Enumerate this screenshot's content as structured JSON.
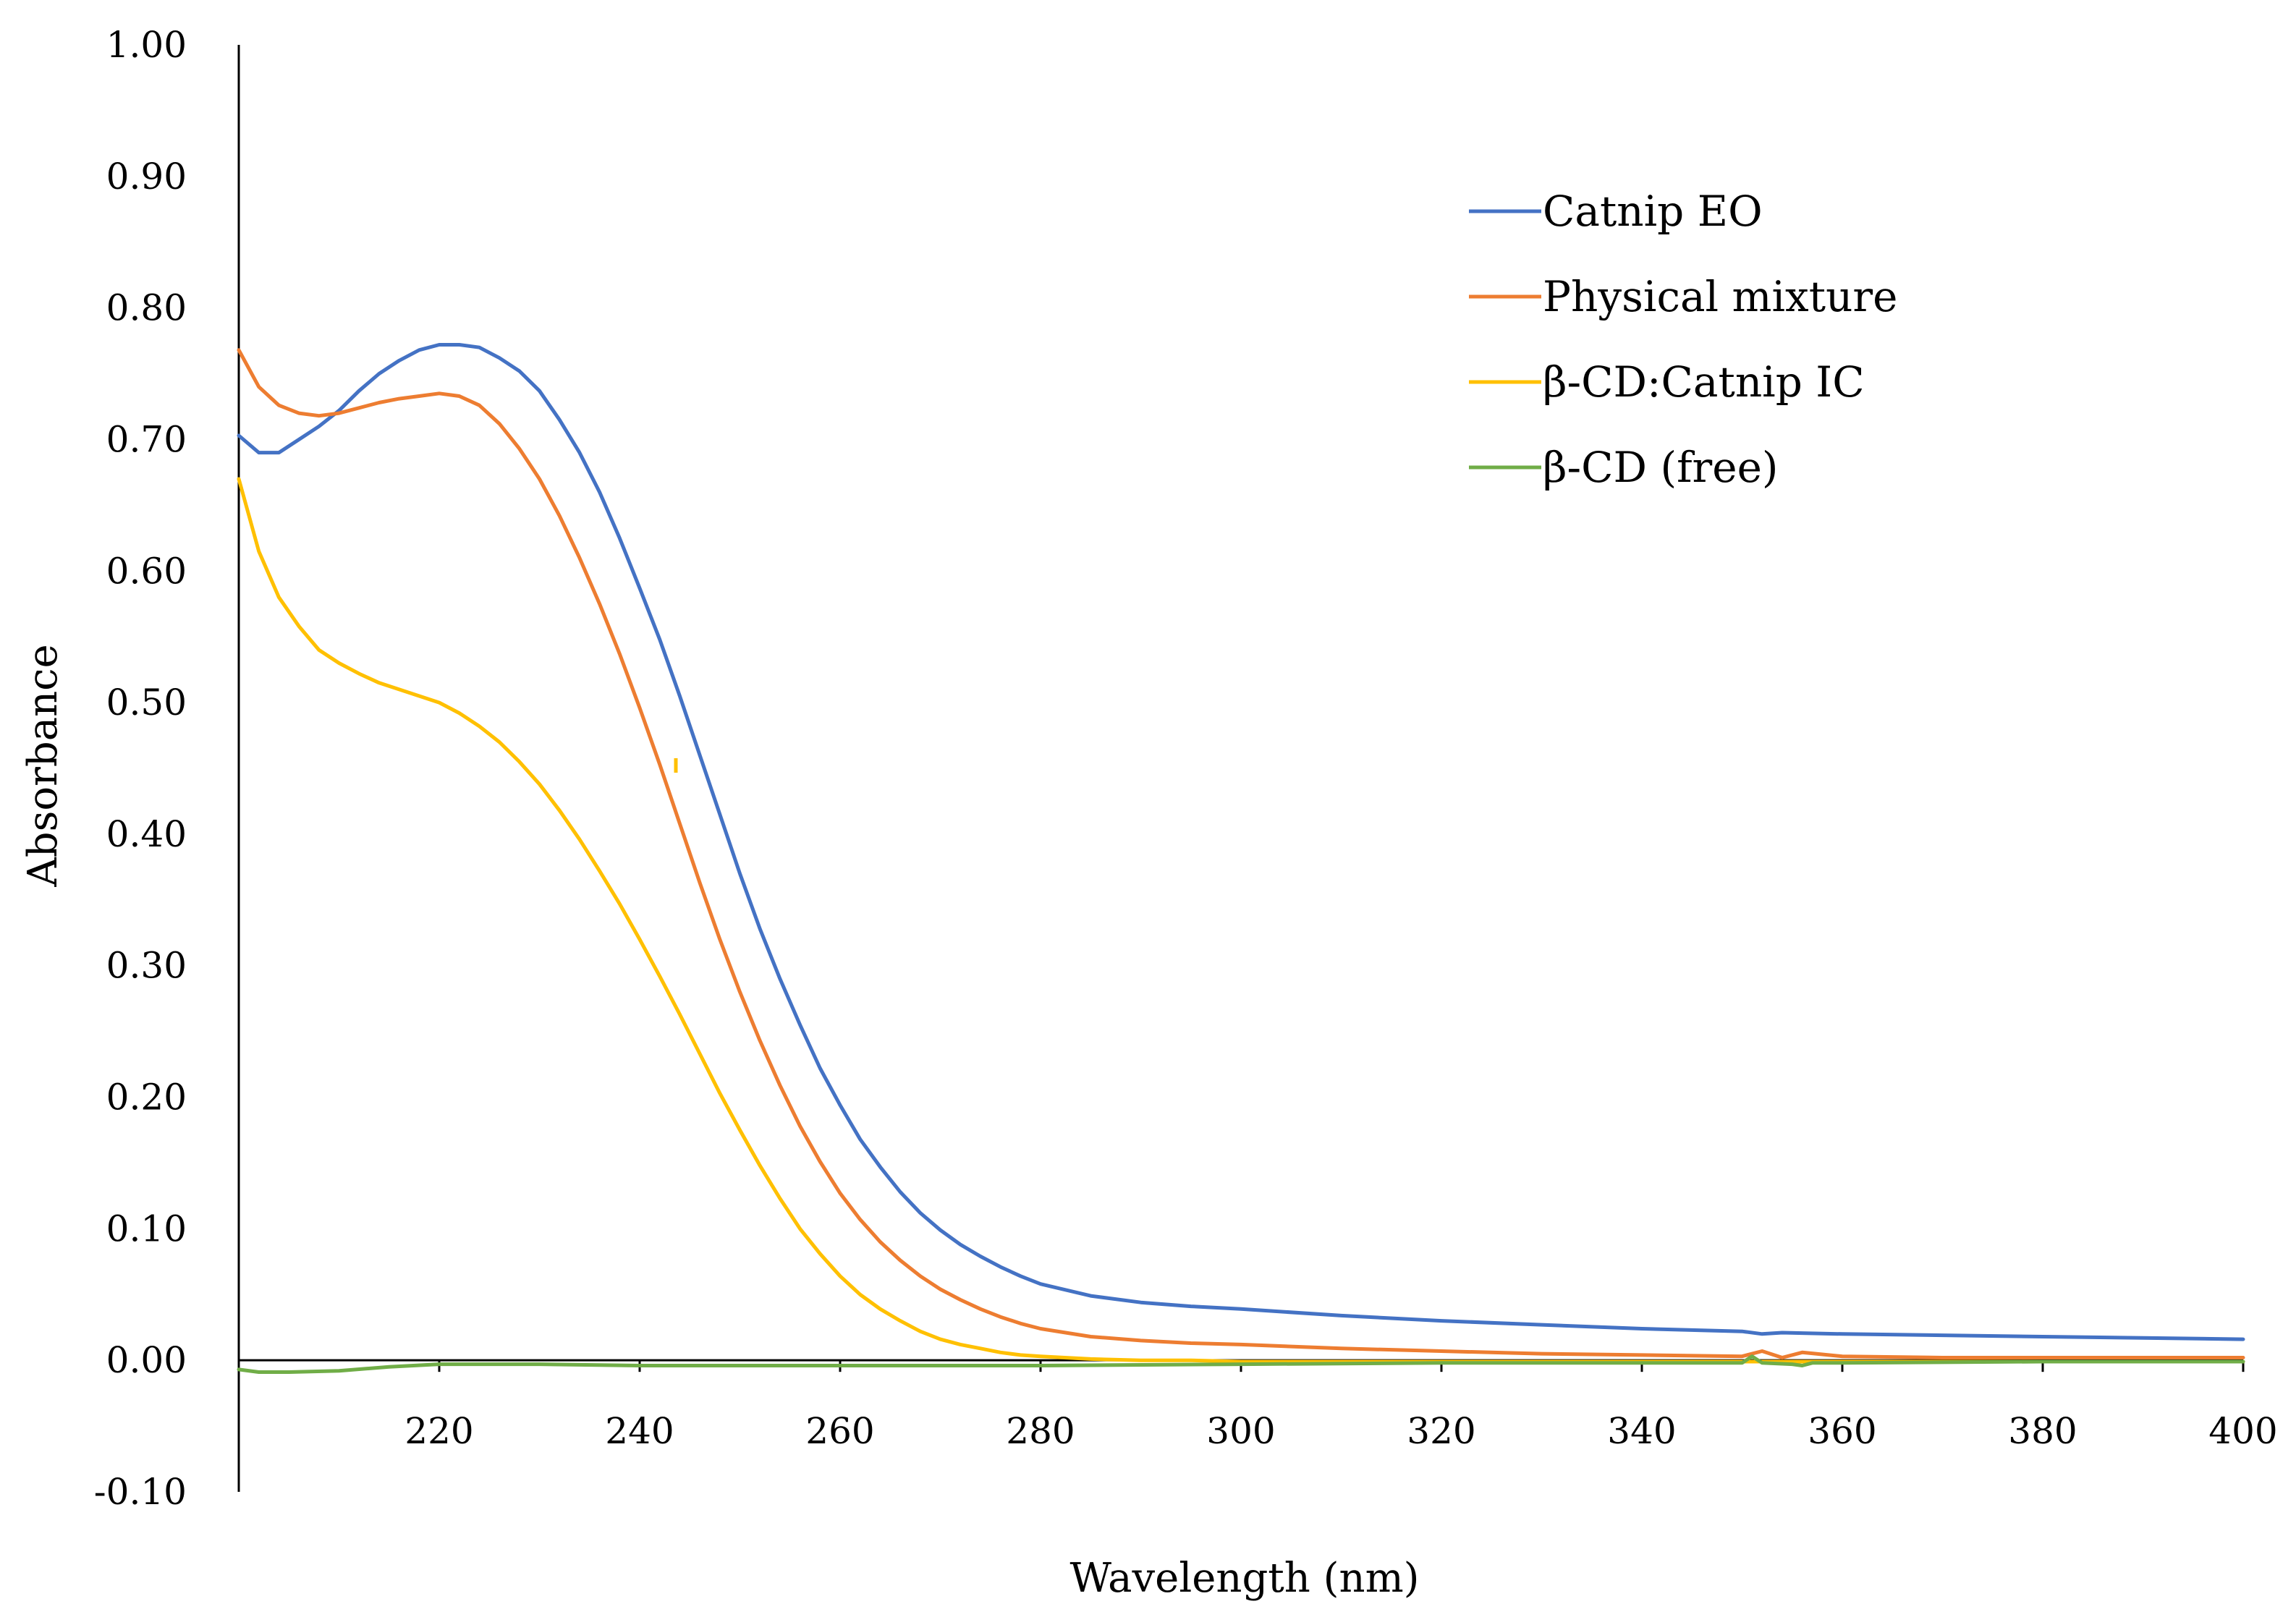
{
  "chart_data": {
    "type": "line",
    "title": "",
    "xlabel": "Wavelength (nm)",
    "ylabel": "Absorbance",
    "xlim": [
      200,
      400
    ],
    "ylim": [
      -0.1,
      1.0
    ],
    "grid": false,
    "legend_position": "top-right",
    "x_ticks": [
      220,
      240,
      260,
      280,
      300,
      320,
      340,
      360,
      380,
      400
    ],
    "x_tick_labels": [
      "220",
      "240",
      "260",
      "280",
      "300",
      "320",
      "340",
      "360",
      "380",
      "400"
    ],
    "y_ticks": [
      -0.1,
      0.0,
      0.1,
      0.2,
      0.3,
      0.4,
      0.5,
      0.6,
      0.7,
      0.8,
      0.9,
      1.0
    ],
    "y_tick_labels": [
      "-0.10",
      "0.00",
      "0.10",
      "0.20",
      "0.30",
      "0.40",
      "0.50",
      "0.60",
      "0.70",
      "0.80",
      "0.90",
      "1.00"
    ],
    "series": [
      {
        "name": "Catnip EO",
        "color": "#4472C4",
        "x": [
          200,
          202,
          204,
          206,
          208,
          210,
          212,
          214,
          216,
          218,
          220,
          222,
          224,
          226,
          228,
          230,
          232,
          234,
          236,
          238,
          240,
          242,
          244,
          246,
          248,
          250,
          252,
          254,
          256,
          258,
          260,
          262,
          264,
          266,
          268,
          270,
          272,
          274,
          276,
          278,
          280,
          285,
          290,
          295,
          300,
          310,
          320,
          330,
          340,
          350,
          352,
          354,
          360,
          370,
          380,
          390,
          400
        ],
        "y": [
          0.703,
          0.69,
          0.69,
          0.7,
          0.71,
          0.722,
          0.737,
          0.75,
          0.76,
          0.768,
          0.772,
          0.772,
          0.77,
          0.762,
          0.752,
          0.737,
          0.715,
          0.69,
          0.66,
          0.625,
          0.587,
          0.548,
          0.505,
          0.46,
          0.415,
          0.37,
          0.328,
          0.29,
          0.255,
          0.222,
          0.194,
          0.168,
          0.147,
          0.128,
          0.112,
          0.099,
          0.088,
          0.079,
          0.071,
          0.064,
          0.058,
          0.049,
          0.044,
          0.041,
          0.039,
          0.034,
          0.03,
          0.027,
          0.024,
          0.022,
          0.02,
          0.021,
          0.02,
          0.019,
          0.018,
          0.017,
          0.016
        ]
      },
      {
        "name": "Physical mixture",
        "color": "#ED7D31",
        "x": [
          200,
          202,
          204,
          206,
          208,
          210,
          212,
          214,
          216,
          218,
          220,
          222,
          224,
          226,
          228,
          230,
          232,
          234,
          236,
          238,
          240,
          242,
          244,
          246,
          248,
          250,
          252,
          254,
          256,
          258,
          260,
          262,
          264,
          266,
          268,
          270,
          272,
          274,
          276,
          278,
          280,
          285,
          290,
          295,
          300,
          310,
          320,
          330,
          340,
          350,
          352,
          354,
          356,
          360,
          370,
          380,
          390,
          400
        ],
        "y": [
          0.768,
          0.74,
          0.726,
          0.72,
          0.718,
          0.72,
          0.724,
          0.728,
          0.731,
          0.733,
          0.735,
          0.733,
          0.726,
          0.712,
          0.693,
          0.67,
          0.642,
          0.61,
          0.575,
          0.537,
          0.496,
          0.453,
          0.408,
          0.363,
          0.32,
          0.28,
          0.243,
          0.209,
          0.178,
          0.151,
          0.127,
          0.107,
          0.09,
          0.076,
          0.064,
          0.054,
          0.046,
          0.039,
          0.033,
          0.028,
          0.024,
          0.018,
          0.015,
          0.013,
          0.012,
          0.009,
          0.007,
          0.005,
          0.004,
          0.003,
          0.007,
          0.002,
          0.006,
          0.003,
          0.002,
          0.002,
          0.002,
          0.002
        ]
      },
      {
        "name": "β-CD:Catnip IC",
        "color": "#FFC000",
        "x": [
          200,
          202,
          204,
          206,
          208,
          210,
          212,
          214,
          216,
          218,
          220,
          222,
          224,
          226,
          228,
          230,
          232,
          234,
          236,
          238,
          240,
          242,
          244,
          246,
          248,
          250,
          252,
          254,
          256,
          258,
          260,
          262,
          264,
          266,
          268,
          270,
          272,
          274,
          276,
          278,
          280,
          285,
          290,
          295,
          300,
          310,
          320,
          340,
          360,
          380,
          400
        ],
        "y": [
          0.67,
          0.615,
          0.58,
          0.558,
          0.54,
          0.53,
          0.522,
          0.515,
          0.51,
          0.505,
          0.5,
          0.492,
          0.482,
          0.47,
          0.455,
          0.438,
          0.418,
          0.396,
          0.372,
          0.347,
          0.32,
          0.292,
          0.263,
          0.233,
          0.203,
          0.175,
          0.148,
          0.123,
          0.1,
          0.081,
          0.064,
          0.05,
          0.039,
          0.03,
          0.022,
          0.016,
          0.012,
          0.009,
          0.006,
          0.004,
          0.003,
          0.001,
          0.0,
          0.0,
          -0.001,
          -0.001,
          -0.001,
          -0.001,
          -0.001,
          -0.001,
          -0.001
        ]
      },
      {
        "name": "β-CD (free)",
        "color": "#70AD47",
        "x": [
          200,
          202,
          205,
          210,
          215,
          220,
          230,
          240,
          260,
          280,
          300,
          320,
          340,
          350,
          351,
          352,
          355,
          356,
          357,
          360,
          380,
          400
        ],
        "y": [
          -0.007,
          -0.009,
          -0.009,
          -0.008,
          -0.005,
          -0.003,
          -0.003,
          -0.004,
          -0.004,
          -0.004,
          -0.003,
          -0.002,
          -0.002,
          -0.002,
          0.003,
          -0.002,
          -0.003,
          -0.004,
          -0.002,
          -0.002,
          -0.001,
          -0.001
        ]
      }
    ]
  }
}
